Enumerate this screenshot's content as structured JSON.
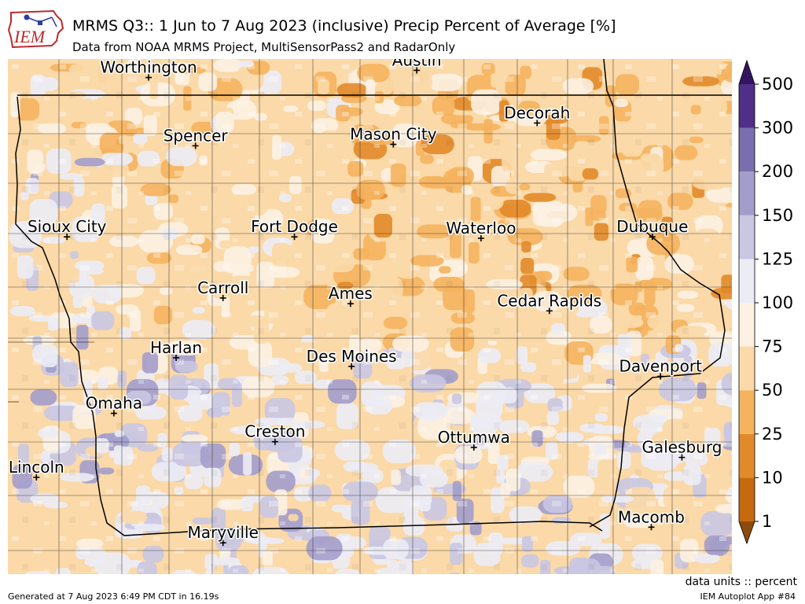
{
  "header": {
    "title": "MRMS Q3:: 1 Jun to 7 Aug 2023 (inclusive) Precip Percent of Average [%]",
    "subtitle": "Data from NOAA MRMS Project, MultiSensorPass2 and RadarOnly"
  },
  "logo": {
    "text": "IEM"
  },
  "footer": {
    "generated": "Generated at 7 Aug 2023 6:49 PM CDT in 16.19s",
    "app": "IEM Autoplot App #84",
    "units": "data units :: percent"
  },
  "colorbar": {
    "levels": [
      "1",
      "10",
      "25",
      "50",
      "75",
      "100",
      "125",
      "150",
      "200",
      "300",
      "500"
    ],
    "colors": [
      "#8c4a0c",
      "#c56a0f",
      "#e28a2a",
      "#f5b35e",
      "#fbd9a8",
      "#fcf1e2",
      "#ececf5",
      "#c9c7e2",
      "#a39dcb",
      "#7b6eae",
      "#4f2f87",
      "#35155f"
    ]
  },
  "cities": [
    {
      "name": "Worthington",
      "lon": -95.6,
      "lat": 43.62
    },
    {
      "name": "Austin",
      "lon": -92.97,
      "lat": 43.67
    },
    {
      "name": "Decorah",
      "lon": -91.79,
      "lat": 43.3
    },
    {
      "name": "Spencer",
      "lon": -95.14,
      "lat": 43.14
    },
    {
      "name": "Mason City",
      "lon": -93.2,
      "lat": 43.15
    },
    {
      "name": "Sioux City",
      "lon": -96.4,
      "lat": 42.5
    },
    {
      "name": "Fort Dodge",
      "lon": -94.17,
      "lat": 42.5
    },
    {
      "name": "Waterloo",
      "lon": -92.34,
      "lat": 42.49
    },
    {
      "name": "Dubuque",
      "lon": -90.66,
      "lat": 42.5
    },
    {
      "name": "Carroll",
      "lon": -94.87,
      "lat": 42.07
    },
    {
      "name": "Ames",
      "lon": -93.62,
      "lat": 42.03
    },
    {
      "name": "Cedar Rapids",
      "lon": -91.67,
      "lat": 41.98
    },
    {
      "name": "Harlan",
      "lon": -95.33,
      "lat": 41.65
    },
    {
      "name": "Des Moines",
      "lon": -93.61,
      "lat": 41.59
    },
    {
      "name": "Davenport",
      "lon": -90.58,
      "lat": 41.52
    },
    {
      "name": "Omaha",
      "lon": -95.94,
      "lat": 41.26
    },
    {
      "name": "Creston",
      "lon": -94.36,
      "lat": 41.06
    },
    {
      "name": "Ottumwa",
      "lon": -92.41,
      "lat": 41.02
    },
    {
      "name": "Galesburg",
      "lon": -90.37,
      "lat": 40.95
    },
    {
      "name": "Lincoln",
      "lon": -96.7,
      "lat": 40.81
    },
    {
      "name": "Macomb",
      "lon": -90.67,
      "lat": 40.46
    },
    {
      "name": "Maryville",
      "lon": -94.87,
      "lat": 40.35
    }
  ]
}
